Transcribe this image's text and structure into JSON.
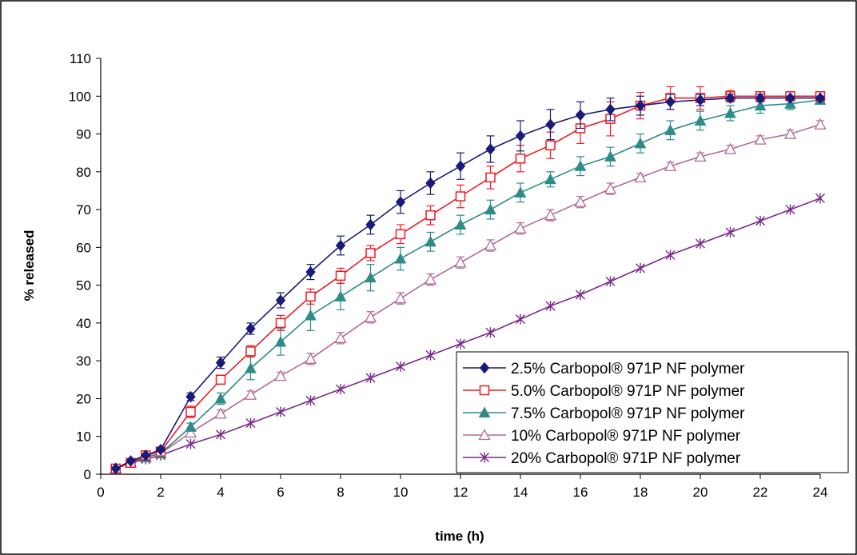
{
  "chart_data": {
    "type": "line",
    "title": "",
    "xlabel": "time (h)",
    "ylabel": "% released",
    "xlim": [
      0,
      24
    ],
    "ylim": [
      0,
      110
    ],
    "xticks": [
      0,
      2,
      4,
      6,
      8,
      10,
      12,
      14,
      16,
      18,
      20,
      22,
      24
    ],
    "yticks": [
      0,
      10,
      20,
      30,
      40,
      50,
      60,
      70,
      80,
      90,
      100,
      110
    ],
    "grid": false,
    "legend_position": "bottom-right",
    "x": [
      0.5,
      1,
      1.5,
      2,
      3,
      4,
      5,
      6,
      7,
      8,
      9,
      10,
      11,
      12,
      13,
      14,
      15,
      16,
      17,
      18,
      19,
      20,
      21,
      22,
      23,
      24
    ],
    "series": [
      {
        "name": "2.5% Carbopol® 971P NF polymer",
        "color": "#1a1a7a",
        "marker": "diamond",
        "values": [
          1.5,
          3.5,
          5,
          6.5,
          20.5,
          29.5,
          38.5,
          46,
          53.5,
          60.5,
          66,
          72,
          77,
          81.5,
          86,
          89.5,
          92.5,
          95,
          96.5,
          97.5,
          98.5,
          99,
          99.5,
          99.5,
          99.5,
          99.5
        ],
        "errors": [
          0,
          0,
          0,
          0.5,
          1,
          1.5,
          1.5,
          2,
          2,
          2.5,
          2.5,
          3,
          3,
          3.5,
          3.5,
          4,
          4,
          3.5,
          3,
          2.5,
          2,
          1.5,
          1,
          1,
          0.5,
          0.5
        ]
      },
      {
        "name": "5.0% Carbopol® 971P NF polymer",
        "color": "#ee1c24",
        "marker": "square-open",
        "values": [
          1.5,
          3,
          5,
          6,
          16.5,
          25,
          32.5,
          40,
          47,
          52.5,
          58.5,
          63.5,
          68.5,
          73.5,
          78.5,
          83.5,
          87,
          91.5,
          94,
          97.5,
          99.5,
          99.5,
          100,
          100,
          100,
          100
        ],
        "errors": [
          0,
          0,
          0,
          0.5,
          1.5,
          1,
          1.5,
          2,
          2,
          2,
          2,
          2.5,
          2.5,
          3,
          3,
          3.5,
          3.5,
          4,
          4.5,
          3.5,
          3,
          3,
          1.5,
          1,
          1,
          1
        ]
      },
      {
        "name": "7.5% Carbopol® 971P NF polymer",
        "color": "#2e8b87",
        "marker": "triangle",
        "values": [
          1.5,
          3,
          4.5,
          5.5,
          12.5,
          20,
          28,
          35,
          42,
          47,
          52,
          57,
          61.5,
          66,
          70,
          74.5,
          78,
          81.5,
          84,
          87.5,
          91,
          93.5,
          95.5,
          97.5,
          98,
          99
        ],
        "errors": [
          0,
          0,
          0,
          0.5,
          1,
          1.5,
          3,
          3.5,
          4,
          3.5,
          3.5,
          3,
          2.5,
          2.5,
          2.5,
          2.5,
          2,
          2.5,
          2.5,
          2.5,
          2.5,
          2.5,
          2,
          2,
          1.5,
          1
        ]
      },
      {
        "name": "10% Carbopol® 971P NF polymer",
        "color": "#b36a96",
        "marker": "triangle-open",
        "values": [
          1.5,
          3,
          4.5,
          5.5,
          11,
          16,
          21,
          26,
          30.5,
          36,
          41.5,
          46.5,
          51.5,
          56,
          60.5,
          65,
          68.5,
          72,
          75.5,
          78.5,
          81.5,
          84,
          86,
          88.5,
          90,
          92.5
        ],
        "errors": [
          0,
          0,
          0,
          0,
          1,
          1,
          1,
          1,
          1.5,
          1.5,
          1.5,
          1.5,
          1.5,
          1.5,
          1.5,
          1.5,
          1.5,
          1.5,
          1.5,
          1,
          1,
          1,
          1,
          1,
          1,
          1
        ]
      },
      {
        "name": "20% Carbopol® 971P NF polymer",
        "color": "#7a2a8a",
        "marker": "asterisk",
        "values": [
          1.5,
          3,
          4,
          5,
          8,
          10.5,
          13.5,
          16.5,
          19.5,
          22.5,
          25.5,
          28.5,
          31.5,
          34.5,
          37.5,
          41,
          44.5,
          47.5,
          51,
          54.5,
          58,
          61,
          64,
          67,
          70,
          73
        ],
        "errors": [
          0,
          0,
          0,
          0,
          0,
          0,
          0,
          0,
          0,
          0,
          0,
          0,
          0,
          0,
          0,
          0,
          0,
          0,
          0,
          0,
          0,
          0,
          0,
          0,
          0,
          0
        ]
      }
    ]
  }
}
